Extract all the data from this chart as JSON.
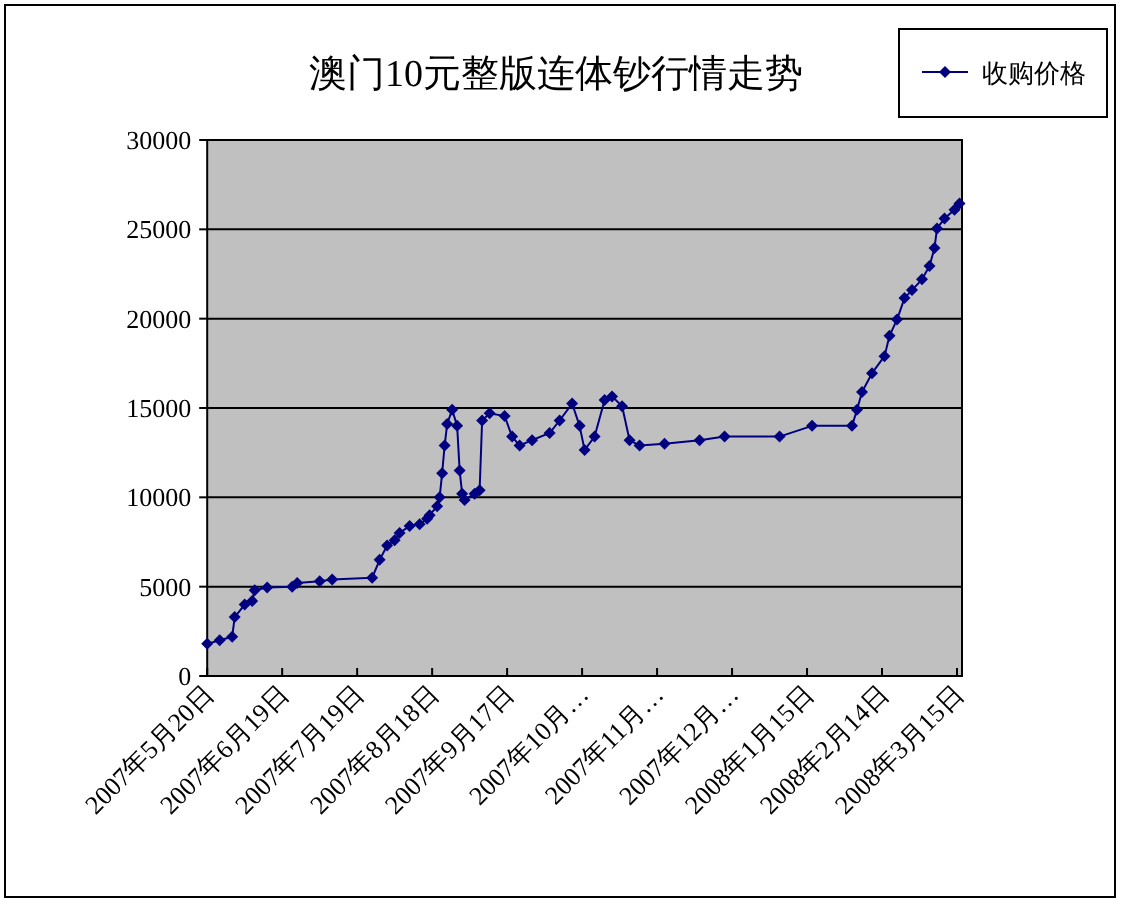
{
  "chart_data": {
    "type": "line",
    "title": "澳门10元整版连体钞行情走势",
    "x": [
      "2007-05-20",
      "2007-05-25",
      "2007-05-30",
      "2007-05-31",
      "2007-06-04",
      "2007-06-07",
      "2007-06-08",
      "2007-06-13",
      "2007-06-23",
      "2007-06-25",
      "2007-07-04",
      "2007-07-09",
      "2007-07-25",
      "2007-07-28",
      "2007-07-31",
      "2007-08-03",
      "2007-08-05",
      "2007-08-09",
      "2007-08-13",
      "2007-08-16",
      "2007-08-17",
      "2007-08-20",
      "2007-08-21",
      "2007-08-22",
      "2007-08-23",
      "2007-08-24",
      "2007-08-26",
      "2007-08-28",
      "2007-08-29",
      "2007-08-30",
      "2007-08-31",
      "2007-09-04",
      "2007-09-06",
      "2007-09-07",
      "2007-09-10",
      "2007-09-16",
      "2007-09-19",
      "2007-09-22",
      "2007-09-27",
      "2007-10-04",
      "2007-10-08",
      "2007-10-13",
      "2007-10-16",
      "2007-10-18",
      "2007-10-22",
      "2007-10-26",
      "2007-10-29",
      "2007-11-02",
      "2007-11-05",
      "2007-11-09",
      "2007-11-19",
      "2007-12-03",
      "2007-12-13",
      "2008-01-04",
      "2008-01-17",
      "2008-02-02",
      "2008-02-04",
      "2008-02-06",
      "2008-02-10",
      "2008-02-15",
      "2008-02-17",
      "2008-02-20",
      "2008-02-23",
      "2008-02-26",
      "2008-03-01",
      "2008-03-04",
      "2008-03-06",
      "2008-03-07",
      "2008-03-10",
      "2008-03-14",
      "2008-03-16"
    ],
    "series": [
      {
        "name": "收购价格",
        "color": "#000080",
        "values": [
          1800,
          2000,
          2200,
          3300,
          4000,
          4200,
          4800,
          4950,
          5000,
          5200,
          5300,
          5400,
          5500,
          6500,
          7300,
          7600,
          8000,
          8400,
          8500,
          8800,
          9000,
          9500,
          10000,
          11350,
          12900,
          14100,
          14900,
          14000,
          11500,
          10200,
          9850,
          10200,
          10400,
          14300,
          14700,
          14550,
          13400,
          12900,
          13200,
          13600,
          14300,
          15250,
          14000,
          12650,
          13400,
          15450,
          15650,
          15100,
          13200,
          12900,
          13000,
          13200,
          13400,
          13400,
          14000,
          14000,
          14900,
          15900,
          16950,
          17900,
          19050,
          19950,
          21150,
          21600,
          22200,
          22950,
          23950,
          25050,
          25600,
          26100,
          26450
        ]
      }
    ],
    "xlim": [
      "2007-05-20",
      "2008-03-17"
    ],
    "xticks": [
      {
        "value": "2007-05-20",
        "label": "2007年5月20日"
      },
      {
        "value": "2007-06-19",
        "label": "2007年6月19日"
      },
      {
        "value": "2007-07-19",
        "label": "2007年7月19日"
      },
      {
        "value": "2007-08-18",
        "label": "2007年8月18日"
      },
      {
        "value": "2007-09-17",
        "label": "2007年9月17日"
      },
      {
        "value": "2007-10-17",
        "label": "2007年10月…"
      },
      {
        "value": "2007-11-16",
        "label": "2007年11月…"
      },
      {
        "value": "2007-12-16",
        "label": "2007年12月…"
      },
      {
        "value": "2008-01-15",
        "label": "2008年1月15日"
      },
      {
        "value": "2008-02-14",
        "label": "2008年2月14日"
      },
      {
        "value": "2008-03-15",
        "label": "2008年3月15日"
      }
    ],
    "ylim": [
      0,
      30000
    ],
    "yticks": [
      0,
      5000,
      10000,
      15000,
      20000,
      25000,
      30000
    ],
    "grid": "y",
    "legend": "top right",
    "marker": "diamond",
    "line_style": "solid"
  }
}
